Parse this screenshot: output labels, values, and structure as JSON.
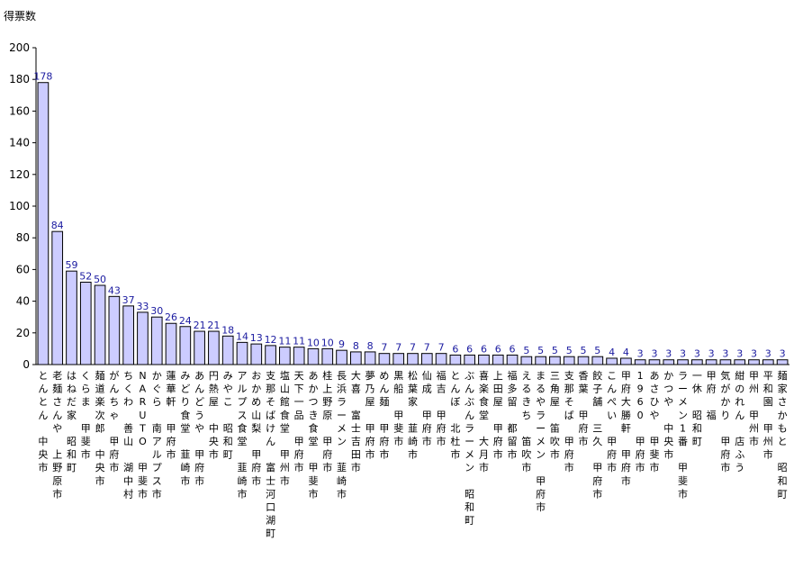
{
  "chart_data": {
    "type": "bar",
    "ylabel": "得票数",
    "xlabel": "",
    "ylim": [
      0,
      200
    ],
    "yticks": [
      0,
      20,
      40,
      60,
      80,
      100,
      120,
      140,
      160,
      180,
      200
    ],
    "grid": false,
    "legend": "none",
    "bar_fill": "#ccccff",
    "bar_stroke": "#000000",
    "label_color": "#1a1aa0",
    "categories": [
      "とんとん 中央市",
      "老麺さんや 上野原市",
      "はねだ家 昭和町",
      "くらま 甲斐市",
      "麺道楽次郎 中央市",
      "がんちゃ 甲府市",
      "ちくわ 善山 湖中村",
      "NARUTO 甲斐市",
      "かぐら 南アルプス市",
      "蓮華軒 甲府市",
      "みどり食堂 韮崎市",
      "あんどうや 甲府市",
      "円熱屋 中央市",
      "みやこ 昭和町",
      "アルプス食堂 韮崎市",
      "おかめ山梨 甲府市",
      "支那そばけん 富士河口湖町",
      "塩山館食堂 甲州市",
      "天下一品 甲府市",
      "あかつき食堂 甲斐市",
      "桂上野原 甲府市",
      "長浜ラーメン 韮崎市",
      "大喜 富士吉田市",
      "夢乃屋 甲府市",
      "めん麺 甲府市",
      "黒船 甲斐市",
      "松葉家 韮崎市",
      "仙成 甲府市",
      "福吉 甲府市",
      "とんぼ 北杜市",
      "ぶんぶんラーメン 昭和町",
      "喜楽食堂 大月市",
      "上田屋 甲府市",
      "福多留 都留市",
      "えるきち 笛吹市",
      "まるやラーメン 甲府市",
      "三角屋 笛吹市",
      "支那そば 甲府市",
      "香葉 甲府市",
      "餃子舗 三久 甲府市",
      "こんぺい 甲府市",
      "甲府大勝軒 甲府市",
      "1960 甲府市",
      "あさひや 甲斐市",
      "かつや 中央市",
      "ラーメン1番 甲斐市",
      "一休 昭和町",
      "甲府 福",
      "気がかり 甲府市",
      "紺のれん 店ふう",
      "甲州 甲州市",
      "平和園 甲州市",
      "麺家さかもと 昭和町"
    ],
    "values": [
      178,
      84,
      59,
      52,
      50,
      43,
      37,
      33,
      30,
      26,
      24,
      21,
      21,
      18,
      14,
      13,
      12,
      11,
      11,
      10,
      10,
      9,
      8,
      8,
      7,
      7,
      7,
      7,
      7,
      6,
      6,
      6,
      6,
      6,
      5,
      5,
      5,
      5,
      5,
      5,
      4,
      4,
      3,
      3,
      3,
      3,
      3,
      3,
      3,
      3,
      3,
      3,
      3
    ]
  }
}
